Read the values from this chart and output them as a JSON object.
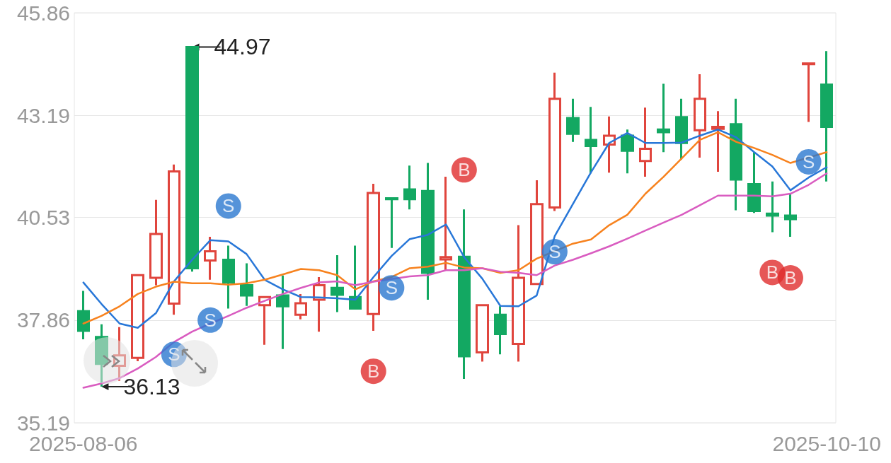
{
  "chart_data": {
    "type": "candlestick",
    "categories": [
      "2025-08-06",
      null,
      null,
      null,
      null,
      null,
      null,
      null,
      null,
      null,
      null,
      null,
      null,
      null,
      null,
      null,
      null,
      null,
      null,
      null,
      null,
      null,
      null,
      null,
      null,
      null,
      null,
      null,
      null,
      null,
      null,
      null,
      null,
      null,
      null,
      null,
      null,
      null,
      null,
      null,
      null,
      "2025-10-10"
    ],
    "ohlc": [
      [
        38.09,
        38.62,
        37.36,
        37.58
      ],
      [
        37.42,
        37.75,
        36.13,
        36.72
      ],
      [
        36.67,
        37.68,
        36.28,
        36.94
      ],
      [
        36.88,
        39.05,
        36.79,
        39.03
      ],
      [
        38.96,
        40.99,
        38.77,
        40.1
      ],
      [
        38.29,
        41.91,
        38.0,
        41.73
      ],
      [
        44.97,
        44.97,
        39.12,
        39.21
      ],
      [
        39.41,
        40.03,
        38.91,
        39.65
      ],
      [
        39.43,
        39.8,
        38.16,
        38.84
      ],
      [
        38.77,
        39.34,
        38.23,
        38.5
      ],
      [
        38.25,
        38.46,
        37.22,
        38.46
      ],
      [
        38.5,
        39.02,
        37.11,
        38.22
      ],
      [
        38.0,
        38.54,
        37.88,
        38.3
      ],
      [
        38.39,
        38.98,
        37.56,
        38.77
      ],
      [
        38.7,
        39.55,
        38.07,
        38.52
      ],
      [
        38.46,
        39.8,
        38.16,
        38.16
      ],
      [
        38.02,
        41.41,
        37.58,
        41.17
      ],
      [
        41.03,
        41.03,
        39.74,
        41.01
      ],
      [
        41.26,
        41.88,
        40.74,
        41.01
      ],
      [
        41.22,
        41.95,
        38.39,
        39.09
      ],
      [
        39.44,
        41.59,
        39.16,
        39.5
      ],
      [
        39.51,
        40.74,
        36.33,
        36.92
      ],
      [
        37.02,
        38.27,
        36.78,
        38.25
      ],
      [
        38.0,
        38.22,
        36.97,
        37.5
      ],
      [
        37.24,
        40.33,
        36.78,
        38.96
      ],
      [
        38.8,
        41.5,
        38.8,
        40.88
      ],
      [
        40.79,
        44.3,
        40.7,
        43.62
      ],
      [
        43.12,
        43.62,
        42.5,
        42.71
      ],
      [
        42.55,
        43.41,
        41.68,
        42.39
      ],
      [
        42.43,
        43.16,
        41.7,
        42.66
      ],
      [
        42.66,
        42.82,
        41.68,
        42.27
      ],
      [
        42.0,
        43.39,
        41.59,
        42.32
      ],
      [
        42.82,
        44.01,
        42.23,
        42.75
      ],
      [
        43.14,
        43.62,
        42.04,
        42.47
      ],
      [
        42.8,
        44.26,
        42.09,
        43.62
      ],
      [
        42.84,
        43.3,
        41.72,
        42.89
      ],
      [
        42.96,
        43.62,
        40.72,
        41.52
      ],
      [
        41.4,
        42.23,
        40.65,
        40.7
      ],
      [
        40.63,
        41.47,
        40.15,
        40.58
      ],
      [
        40.58,
        41.15,
        40.03,
        40.49
      ],
      [
        44.52,
        44.54,
        43.02,
        44.54
      ],
      [
        43.99,
        44.86,
        41.47,
        42.89
      ]
    ],
    "colors": [
      "#13a862",
      "#13a862",
      "#e0453d",
      "#e0453d",
      "#e0453d",
      "#e0453d",
      "#13a862",
      "#e0453d",
      "#13a862",
      "#13a862",
      "#e0453d",
      "#13a862",
      "#e0453d",
      "#e0453d",
      "#13a862",
      "#13a862",
      "#e0453d",
      "#13a862",
      "#13a862",
      "#13a862",
      "#e0453d",
      "#13a862",
      "#e0453d",
      "#13a862",
      "#e0453d",
      "#e0453d",
      "#e0453d",
      "#13a862",
      "#13a862",
      "#e0453d",
      "#13a862",
      "#e0453d",
      "#13a862",
      "#13a862",
      "#e0453d",
      "#e0453d",
      "#13a862",
      "#13a862",
      "#13a862",
      "#13a862",
      "#e0453d",
      "#13a862"
    ],
    "series": [
      {
        "type": "line",
        "color": "#2877d8",
        "marker": "none",
        "values": [
          38.84,
          38.28,
          37.77,
          37.66,
          38.04,
          38.87,
          39.43,
          39.94,
          39.91,
          39.58,
          38.91,
          38.66,
          38.46,
          38.45,
          38.43,
          38.39,
          38.98,
          39.53,
          39.97,
          40.08,
          40.35,
          39.5,
          38.94,
          38.23,
          38.22,
          38.5,
          40.05,
          40.88,
          41.71,
          42.47,
          42.73,
          42.47,
          42.47,
          42.48,
          42.66,
          42.82,
          42.62,
          42.23,
          41.86,
          41.24,
          41.57,
          41.84
        ]
      },
      {
        "type": "line",
        "color": "#f7821e",
        "marker": "none",
        "values": [
          37.77,
          37.97,
          38.22,
          38.54,
          38.73,
          38.86,
          38.82,
          38.82,
          38.78,
          38.82,
          38.91,
          39.05,
          39.19,
          39.16,
          39.03,
          38.66,
          38.87,
          38.98,
          39.21,
          39.25,
          39.35,
          39.23,
          39.21,
          39.09,
          39.16,
          39.46,
          null,
          39.85,
          39.96,
          40.33,
          40.6,
          41.15,
          41.59,
          42.07,
          42.55,
          42.75,
          42.5,
          42.34,
          42.16,
          41.95,
          null,
          42.23
        ]
      },
      {
        "type": "line",
        "color": "#d95cc0",
        "marker": "none",
        "values": [
          36.1,
          36.21,
          36.35,
          36.6,
          36.9,
          37.29,
          37.56,
          37.77,
          37.97,
          38.18,
          38.36,
          38.54,
          38.7,
          38.84,
          38.87,
          38.77,
          38.86,
          null,
          39.0,
          39.03,
          39.16,
          39.16,
          39.21,
          39.12,
          39.09,
          39.03,
          39.28,
          39.43,
          39.6,
          39.78,
          39.98,
          40.19,
          40.4,
          40.6,
          40.85,
          41.1,
          41.1,
          41.1,
          41.08,
          41.15,
          41.38,
          41.68
        ]
      },
      {
        "type": "scatter",
        "color": "#2a78d0",
        "marker": "circle",
        "values": [
          null,
          null,
          null,
          null,
          null,
          36.97,
          null,
          37.86,
          40.83,
          null,
          null,
          null,
          null,
          null,
          null,
          null,
          null,
          38.7,
          null,
          null,
          null,
          null,
          null,
          null,
          null,
          null,
          39.64,
          null,
          null,
          null,
          null,
          null,
          null,
          null,
          null,
          null,
          null,
          null,
          null,
          null,
          41.98,
          null
        ],
        "value_labels": [
          null,
          null,
          null,
          null,
          null,
          "S",
          null,
          "S",
          "S",
          null,
          null,
          null,
          null,
          null,
          null,
          null,
          null,
          "S",
          null,
          null,
          null,
          null,
          null,
          null,
          null,
          null,
          "S",
          null,
          null,
          null,
          null,
          null,
          null,
          null,
          null,
          null,
          null,
          null,
          null,
          null,
          "S",
          null
        ]
      },
      {
        "type": "scatter",
        "color": "#e02d2d",
        "marker": "circle",
        "values": [
          null,
          null,
          null,
          null,
          null,
          null,
          null,
          null,
          null,
          null,
          null,
          null,
          null,
          null,
          null,
          null,
          36.53,
          null,
          null,
          null,
          null,
          41.77,
          null,
          null,
          null,
          null,
          null,
          null,
          null,
          null,
          null,
          null,
          null,
          null,
          null,
          null,
          null,
          null,
          39.1,
          38.96,
          null,
          null
        ],
        "value_labels": [
          null,
          null,
          null,
          null,
          null,
          null,
          null,
          null,
          null,
          null,
          null,
          null,
          null,
          null,
          null,
          null,
          "B",
          null,
          null,
          null,
          null,
          "B",
          null,
          null,
          null,
          null,
          null,
          null,
          null,
          null,
          null,
          null,
          null,
          null,
          null,
          null,
          null,
          null,
          "B",
          "B",
          null,
          null
        ]
      }
    ],
    "annotations": [
      "44.97",
      "36.13"
    ],
    "ylim": [
      35.19,
      45.86
    ],
    "yticks": [
      35.19,
      37.86,
      40.53,
      43.19,
      45.86
    ],
    "grid": "y",
    "line_style": "solid"
  }
}
